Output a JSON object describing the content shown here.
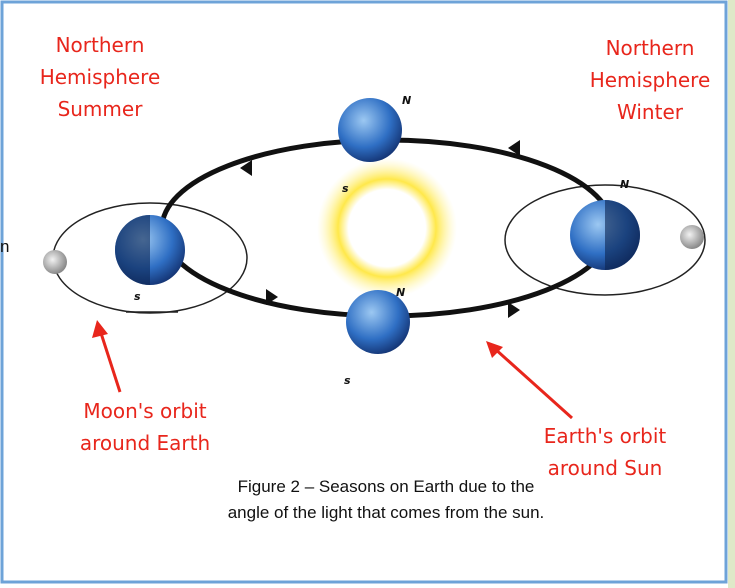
{
  "labels": {
    "summer": [
      "Northern",
      "Hemisphere",
      "Summer"
    ],
    "winter": [
      "Northern",
      "Hemisphere",
      "Winter"
    ],
    "moon_orbit": [
      "Moon's orbit",
      "around Earth"
    ],
    "earth_orbit": [
      "Earth's orbit",
      "around Sun"
    ],
    "fragment": "n"
  },
  "poles": [
    "N",
    "s",
    "N",
    "N",
    "s",
    "s"
  ],
  "caption": [
    "Figure 2 – Seasons on Earth due to the",
    "angle of the light that comes from the sun."
  ]
}
